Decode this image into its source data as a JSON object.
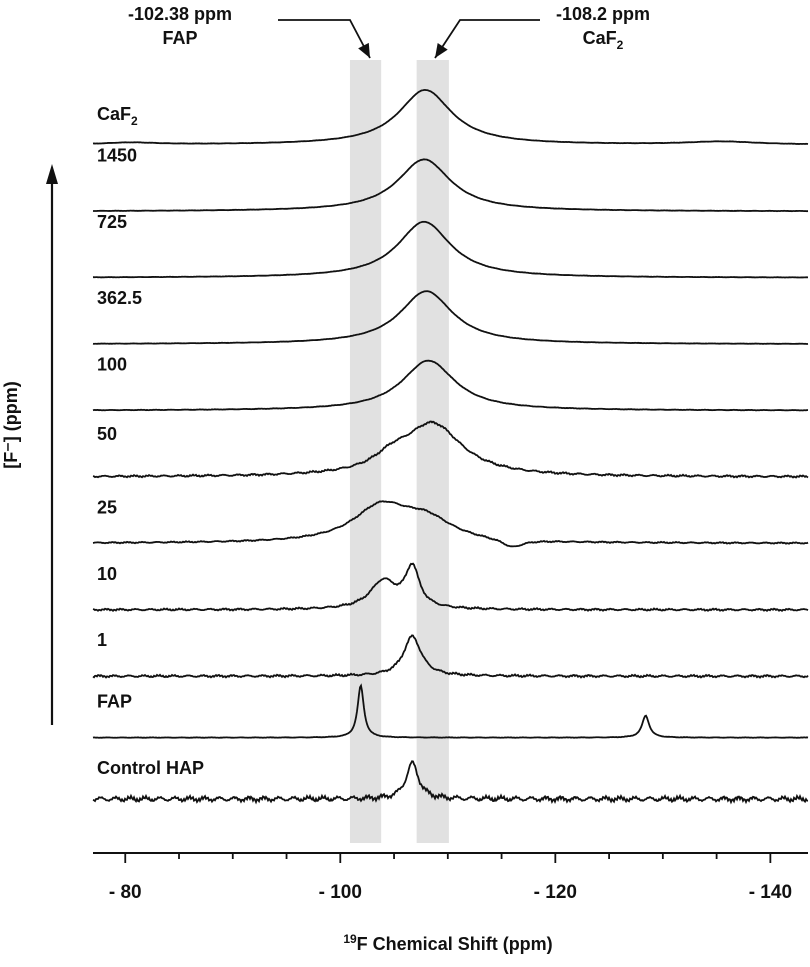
{
  "chart_data": {
    "type": "line",
    "xlabel_sup": "19",
    "xlabel": "F Chemical Shift (ppm)",
    "ylabel": "[F⁻] (ppm)",
    "ylabel_sup": "-",
    "x_reversed": true,
    "xlim": [
      -77,
      -143.5
    ],
    "xticks": [
      {
        "value": -80,
        "label": "- 80"
      },
      {
        "value": -100,
        "label": "- 100"
      },
      {
        "value": -120,
        "label": "- 120"
      },
      {
        "value": -140,
        "label": "- 140"
      }
    ],
    "annotations": [
      {
        "line1": "-102.38 ppm",
        "line2": "FAP",
        "band_from": -100.9,
        "band_to": -103.8
      },
      {
        "line1": "-108.2 ppm",
        "line2": "CaF",
        "line2_sub": "2",
        "band_from": -107.1,
        "band_to": -110.1
      }
    ],
    "series": [
      {
        "name": "CaF",
        "name_sub": "2",
        "peaks": [
          {
            "center": -107.9,
            "height": 55,
            "width": 3.0
          },
          {
            "center": -135.5,
            "height": 3,
            "width": 4.0
          },
          {
            "center": -80.5,
            "height": 2,
            "width": 3.0
          }
        ],
        "noise": 0.2
      },
      {
        "name": "1450",
        "peaks": [
          {
            "center": -107.8,
            "height": 52,
            "width": 3.0
          }
        ],
        "noise": 0.2
      },
      {
        "name": "725",
        "peaks": [
          {
            "center": -107.8,
            "height": 56,
            "width": 3.0
          }
        ],
        "noise": 0.2
      },
      {
        "name": "362.5",
        "peaks": [
          {
            "center": -108.0,
            "height": 53,
            "width": 3.0
          }
        ],
        "noise": 0.2
      },
      {
        "name": "100",
        "peaks": [
          {
            "center": -108.2,
            "height": 50,
            "width": 3.0
          }
        ],
        "noise": 0.3
      },
      {
        "name": "50",
        "peaks": [
          {
            "center": -108.6,
            "height": 52,
            "width": 3.3
          },
          {
            "center": -104.8,
            "height": 12,
            "width": 2.0
          }
        ],
        "noise": 1.2
      },
      {
        "name": "25",
        "peaks": [
          {
            "center": -103.8,
            "height": 35,
            "width": 3.2
          },
          {
            "center": -108.0,
            "height": 20,
            "width": 3.0
          },
          {
            "center": -116.0,
            "height": -8,
            "width": 1.2
          }
        ],
        "noise": 0.8
      },
      {
        "name": "10",
        "peaks": [
          {
            "center": -104.0,
            "height": 28,
            "width": 1.5
          },
          {
            "center": -106.7,
            "height": 40,
            "width": 0.8
          }
        ],
        "noise": 1.2
      },
      {
        "name": "1",
        "peaks": [
          {
            "center": -106.7,
            "height": 40,
            "width": 1.0
          }
        ],
        "noise": 1.4
      },
      {
        "name": "FAP",
        "peaks": [
          {
            "center": -101.9,
            "height": 52,
            "width": 0.35
          },
          {
            "center": -128.4,
            "height": 22,
            "width": 0.4
          }
        ],
        "noise": 0.3
      },
      {
        "name": "Control HAP",
        "peaks": [
          {
            "center": -106.7,
            "height": 36,
            "width": 0.7
          }
        ],
        "noise": 3.2
      }
    ]
  }
}
